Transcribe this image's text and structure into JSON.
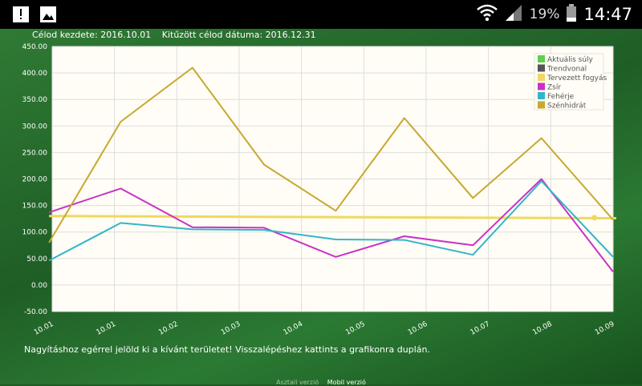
{
  "statusbar": {
    "battery_percent": "19%",
    "time": "14:47"
  },
  "header": {
    "start_label": "Célod kezdete: 2016.10.01",
    "target_label": "Kitűzött célod dátuma: 2016.12.31"
  },
  "hint": "Nagyításhoz egérrel jelöld ki a kívánt területet! Visszalépéshez kattints a grafikonra duplán.",
  "footer": {
    "desktop": "Asztali verzió",
    "mobile": "Mobil verzió"
  },
  "chart_data": {
    "type": "line",
    "ylim": [
      -50,
      450
    ],
    "yticks": [
      "450.00",
      "400.00",
      "350.00",
      "300.00",
      "250.00",
      "200.00",
      "150.00",
      "100.00",
      "50.00",
      "0.00",
      "-50.00"
    ],
    "x": [
      0,
      1,
      2,
      3,
      4,
      5,
      6,
      7,
      8,
      9
    ],
    "xtick_labels": [
      "10.01",
      "10.01",
      "10.02",
      "10.03",
      "10.04",
      "10.05",
      "10.06",
      "10.07",
      "10.08",
      "10.09"
    ],
    "series": [
      {
        "name": "Aktuális súly",
        "color": "#5fd04a",
        "x": [],
        "values": []
      },
      {
        "name": "Trendvonal",
        "color": "#555555",
        "x": [],
        "values": []
      },
      {
        "name": "Tervezett fogyás",
        "color": "#f0d860",
        "x": [
          -0.05,
          9.05
        ],
        "values": [
          130,
          126
        ],
        "marker_at": {
          "x": 8.7,
          "y": 127
        }
      },
      {
        "name": "Zsír",
        "color": "#c832c8",
        "x": [
          -0.05,
          1.1,
          2.25,
          3.4,
          4.55,
          5.65,
          6.75,
          7.85,
          9.0
        ],
        "values": [
          137,
          182,
          109,
          108,
          53,
          92,
          75,
          200,
          25
        ]
      },
      {
        "name": "Fehérje",
        "color": "#33b5c8",
        "x": [
          -0.05,
          1.1,
          2.25,
          3.4,
          4.55,
          5.65,
          6.75,
          7.85,
          9.0
        ],
        "values": [
          46,
          117,
          105,
          104,
          86,
          85,
          57,
          196,
          53
        ]
      },
      {
        "name": "Szénhidrát",
        "color": "#c8a830",
        "x": [
          -0.05,
          1.1,
          2.25,
          3.4,
          4.55,
          5.65,
          6.75,
          7.85,
          9.0
        ],
        "values": [
          80,
          308,
          410,
          227,
          140,
          315,
          164,
          277,
          123
        ]
      }
    ]
  }
}
